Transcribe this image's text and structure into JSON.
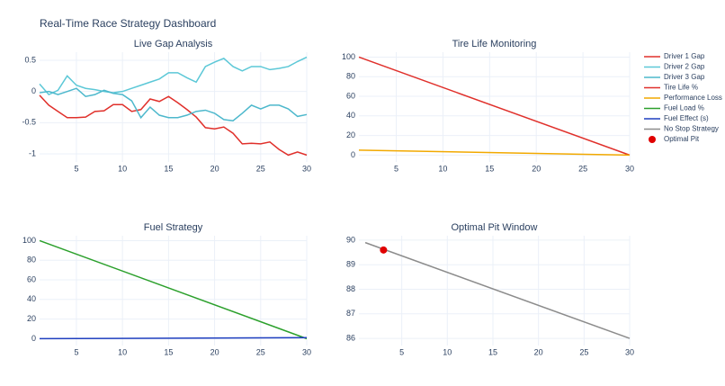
{
  "title": "Real-Time Race Strategy Dashboard",
  "chart_data": [
    {
      "type": "line",
      "title": "Live Gap Analysis",
      "x": [
        1,
        2,
        3,
        4,
        5,
        6,
        7,
        8,
        9,
        10,
        11,
        12,
        13,
        14,
        15,
        16,
        17,
        18,
        19,
        20,
        21,
        22,
        23,
        24,
        25,
        26,
        27,
        28,
        29,
        30
      ],
      "xlim": [
        1,
        30
      ],
      "xticks": [
        5,
        10,
        15,
        20,
        25,
        30
      ],
      "ylim": [
        -1.13,
        0.63
      ],
      "yticks": [
        -1,
        -0.5,
        0,
        0.5
      ],
      "grid": true,
      "series": [
        {
          "name": "Driver 1 Gap",
          "color": "#e0302b",
          "values": [
            -0.06,
            -0.22,
            -0.32,
            -0.42,
            -0.42,
            -0.41,
            -0.32,
            -0.31,
            -0.21,
            -0.21,
            -0.32,
            -0.29,
            -0.12,
            -0.16,
            -0.08,
            -0.18,
            -0.29,
            -0.41,
            -0.58,
            -0.6,
            -0.57,
            -0.67,
            -0.84,
            -0.83,
            -0.84,
            -0.81,
            -0.93,
            -1.02,
            -0.97,
            -1.02
          ]
        },
        {
          "name": "Driver 2 Gap",
          "color": "#5cc8d7",
          "values": [
            0.12,
            -0.05,
            0.02,
            0.25,
            0.1,
            0.05,
            0.03,
            0.0,
            -0.02,
            0.0,
            0.05,
            0.1,
            0.15,
            0.2,
            0.3,
            0.3,
            0.22,
            0.15,
            0.4,
            0.47,
            0.53,
            0.4,
            0.33,
            0.4,
            0.4,
            0.35,
            0.37,
            0.4,
            0.48,
            0.55
          ]
        },
        {
          "name": "Driver 3 Gap",
          "color": "#4db8cc",
          "values": [
            -0.02,
            0.0,
            -0.05,
            0.0,
            0.05,
            -0.08,
            -0.05,
            0.02,
            -0.03,
            -0.05,
            -0.15,
            -0.42,
            -0.25,
            -0.38,
            -0.42,
            -0.42,
            -0.38,
            -0.32,
            -0.3,
            -0.35,
            -0.45,
            -0.47,
            -0.35,
            -0.22,
            -0.28,
            -0.22,
            -0.22,
            -0.28,
            -0.4,
            -0.37
          ]
        }
      ]
    },
    {
      "type": "line",
      "title": "Tire Life Monitoring",
      "x": [
        1,
        30
      ],
      "xlim": [
        1,
        30
      ],
      "xticks": [
        5,
        10,
        15,
        20,
        25,
        30
      ],
      "ylim": [
        -7,
        105
      ],
      "yticks": [
        0,
        20,
        40,
        60,
        80,
        100
      ],
      "grid": true,
      "series": [
        {
          "name": "Tire Life %",
          "color": "#e0302b",
          "values": [
            100,
            0
          ]
        },
        {
          "name": "Performance Loss",
          "color": "#f2a900",
          "values": [
            5,
            0
          ]
        }
      ]
    },
    {
      "type": "line",
      "title": "Fuel Strategy",
      "x": [
        1,
        30
      ],
      "xlim": [
        1,
        30
      ],
      "xticks": [
        5,
        10,
        15,
        20,
        25,
        30
      ],
      "ylim": [
        -7,
        105
      ],
      "yticks": [
        0,
        20,
        40,
        60,
        80,
        100
      ],
      "grid": true,
      "series": [
        {
          "name": "Fuel Load %",
          "color": "#2ca02c",
          "values": [
            100,
            0
          ]
        },
        {
          "name": "Fuel Effect (s)",
          "color": "#1f3fbf",
          "values": [
            0,
            1
          ]
        }
      ]
    },
    {
      "type": "line",
      "title": "Optimal Pit Window",
      "x": [
        1,
        30
      ],
      "xlim": [
        0.3,
        30
      ],
      "xticks": [
        5,
        10,
        15,
        20,
        25,
        30
      ],
      "ylim": [
        85.71,
        90.18
      ],
      "yticks": [
        86,
        87,
        88,
        89,
        90
      ],
      "grid": true,
      "series": [
        {
          "name": "No Stop Strategy",
          "color": "#8c8c8c",
          "values": [
            89.9,
            86
          ]
        },
        {
          "name": "Optimal Pit",
          "color": "#e00000",
          "mode": "markers",
          "x": [
            3
          ],
          "values": [
            89.6
          ]
        }
      ]
    }
  ]
}
